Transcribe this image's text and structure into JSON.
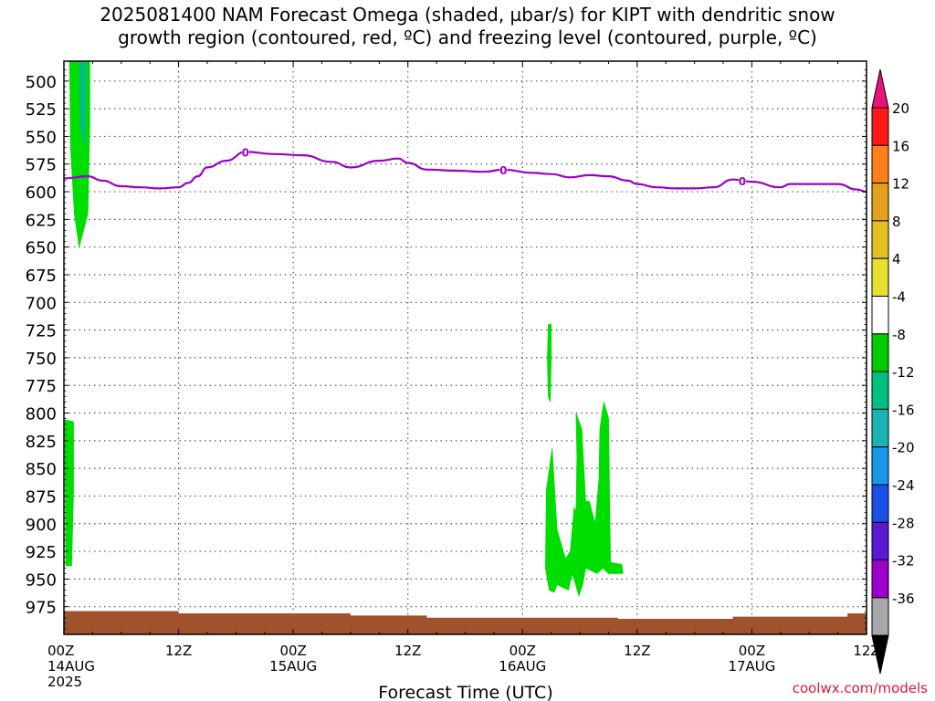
{
  "title": {
    "line1": "2025081400 NAM Forecast Omega (shaded, µbar/s) for KIPT with dendritic snow",
    "line2": "growth region (contoured, red, ºC) and freezing level (contoured, purple, ºC)"
  },
  "credit": "coolwx.com/models",
  "chart_data": {
    "type": "contour",
    "xlabel": "Forecast Time (UTC)",
    "x_unit": "hours",
    "xlim": [
      0,
      84
    ],
    "x_ticks": [
      {
        "x": 0,
        "lines": [
          "00Z",
          "14AUG",
          "2025"
        ]
      },
      {
        "x": 12,
        "lines": [
          "12Z"
        ]
      },
      {
        "x": 24,
        "lines": [
          "00Z",
          "15AUG"
        ]
      },
      {
        "x": 36,
        "lines": [
          "12Z"
        ]
      },
      {
        "x": 48,
        "lines": [
          "00Z",
          "16AUG"
        ]
      },
      {
        "x": 60,
        "lines": [
          "12Z"
        ]
      },
      {
        "x": 72,
        "lines": [
          "00Z",
          "17AUG"
        ]
      },
      {
        "x": 84,
        "lines": [
          "12Z"
        ]
      }
    ],
    "y_unit": "hPa",
    "ylim": [
      1000,
      482
    ],
    "y_ticks": [
      500,
      525,
      550,
      575,
      600,
      625,
      650,
      675,
      700,
      725,
      750,
      775,
      800,
      825,
      850,
      875,
      900,
      925,
      950,
      975
    ],
    "grid": true,
    "colorbar": {
      "levels": [
        "20",
        "16",
        "12",
        "8",
        "4",
        "-4",
        "-8",
        "-12",
        "-16",
        "-20",
        "-24",
        "-28",
        "-32",
        "-36"
      ],
      "bin_colors": [
        "#ff1a1a",
        "#ff7f1a",
        "#e6a020",
        "#e6c020",
        "#e6e030",
        "#ffffff",
        "#00cc00",
        "#00c080",
        "#1ab4b4",
        "#1a96e6",
        "#1a50e6",
        "#5a1ad2",
        "#9a00c8",
        "#a8a8a8"
      ],
      "top_arrow_color": "#e6147a",
      "bottom_arrow_color": "#000000"
    },
    "freezing_level": {
      "color": "#9a00c8",
      "label": "0",
      "label_at_x": [
        19,
        46,
        71
      ],
      "x": [
        0,
        2.5,
        4,
        6,
        8,
        10,
        12,
        13,
        14,
        15,
        17,
        19,
        22,
        25,
        28,
        30,
        33,
        35,
        36,
        38,
        41,
        44,
        46,
        49,
        51,
        53,
        55,
        57,
        59,
        60,
        62,
        64,
        66,
        68,
        70,
        72,
        75,
        76,
        79,
        81,
        83,
        84
      ],
      "y": [
        588,
        586,
        590,
        595,
        596,
        597,
        596,
        592,
        586,
        578,
        572,
        564,
        566,
        567,
        573,
        578,
        572,
        570,
        574,
        580,
        581,
        582,
        580,
        583,
        584,
        587,
        585,
        586,
        590,
        593,
        596,
        597,
        597,
        596,
        589,
        591,
        596,
        593,
        593,
        593,
        598,
        600
      ]
    },
    "omega_areas": [
      {
        "name": "-4 to -8",
        "color": "#00dd00",
        "points": [
          [
            0.6,
            482
          ],
          [
            2.7,
            482
          ],
          [
            2.7,
            540
          ],
          [
            2.5,
            620
          ],
          [
            1.6,
            650
          ],
          [
            1.1,
            620
          ],
          [
            0.7,
            560
          ]
        ]
      },
      {
        "name": "-8 to -12",
        "color": "#00c080",
        "points": [
          [
            1.6,
            482
          ],
          [
            2.4,
            482
          ],
          [
            2.2,
            560
          ],
          [
            1.7,
            540
          ]
        ]
      },
      {
        "name": "-4 to -8",
        "color": "#00dd00",
        "points": [
          [
            0.1,
            806
          ],
          [
            1.0,
            808
          ],
          [
            1.0,
            870
          ],
          [
            0.8,
            938
          ],
          [
            0.2,
            938
          ]
        ]
      },
      {
        "name": "-4 to -8",
        "color": "#00dd00",
        "points": [
          [
            50.5,
            870
          ],
          [
            51.1,
            832
          ],
          [
            51.6,
            905
          ],
          [
            52.5,
            932
          ],
          [
            53.0,
            925
          ],
          [
            53.4,
            885
          ],
          [
            53.6,
            890
          ],
          [
            53.7,
            840
          ],
          [
            53.6,
            800
          ],
          [
            54.2,
            815
          ],
          [
            54.6,
            880
          ],
          [
            55.0,
            880
          ],
          [
            55.6,
            900
          ],
          [
            56.0,
            860
          ],
          [
            56.1,
            815
          ],
          [
            56.5,
            790
          ],
          [
            57.0,
            805
          ],
          [
            57.1,
            870
          ],
          [
            57.2,
            935
          ],
          [
            58.4,
            937
          ],
          [
            58.5,
            945
          ],
          [
            57.0,
            945
          ],
          [
            56.4,
            940
          ],
          [
            55.8,
            945
          ],
          [
            54.6,
            940
          ],
          [
            54.3,
            955
          ],
          [
            53.9,
            965
          ],
          [
            53.2,
            945
          ],
          [
            52.8,
            960
          ],
          [
            51.6,
            955
          ],
          [
            51.3,
            962
          ],
          [
            50.8,
            960
          ],
          [
            50.4,
            940
          ]
        ]
      },
      {
        "name": "-4 to -8",
        "color": "#00dd00",
        "points": [
          [
            50.7,
            720
          ],
          [
            51.0,
            720
          ],
          [
            51.0,
            750
          ],
          [
            50.9,
            790
          ],
          [
            50.7,
            785
          ],
          [
            50.6,
            750
          ]
        ]
      }
    ],
    "terrain": {
      "color": "#a0522d",
      "x": [
        0,
        12,
        12,
        30,
        30,
        38,
        38,
        58,
        58,
        70,
        70,
        82,
        82,
        84
      ],
      "y": [
        979,
        979,
        981,
        981,
        983,
        983,
        985,
        985,
        986,
        986,
        984,
        984,
        981,
        981
      ]
    }
  }
}
